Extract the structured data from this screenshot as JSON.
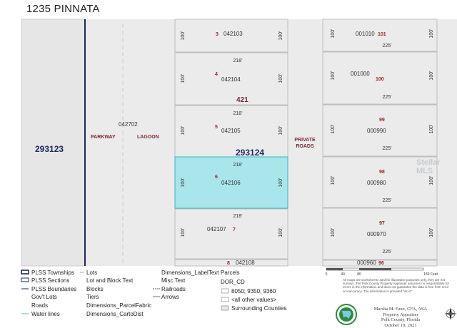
{
  "header": {
    "title": "1235 PINNATA"
  },
  "map": {
    "sections": [
      {
        "label": "293123"
      },
      {
        "label": "293124"
      }
    ],
    "street_labels": {
      "parkway": "PARKWAY",
      "lagoon": "LAGOON",
      "private_roads": "PRIVATE ROADS",
      "parcel_042702": "042702"
    },
    "left_lots": [
      {
        "lot": "3",
        "parcel": "042103",
        "top_dim": "",
        "side_dim": "100'"
      },
      {
        "lot": "4",
        "parcel": "042104",
        "top_dim": "218'",
        "side_dim": "100'"
      },
      {
        "lot": "5",
        "parcel": "042105",
        "top_dim": "218'",
        "side_dim": "100'"
      },
      {
        "lot": "6",
        "parcel": "042106",
        "top_dim": "218'",
        "side_dim": "100'",
        "highlighted": true
      },
      {
        "lot": "7",
        "parcel": "042107",
        "top_dim": "218'",
        "side_dim": "100'"
      },
      {
        "lot": "8",
        "parcel": "042108",
        "top_dim": "",
        "side_dim": ""
      }
    ],
    "block_label": "421",
    "right_lots": [
      {
        "lot": "101",
        "parcel": "001010",
        "bottom_dim": "225'",
        "side_dim": "100'"
      },
      {
        "lot": "100",
        "parcel": "001000",
        "bottom_dim": "225'",
        "side_dim": "100'"
      },
      {
        "lot": "99",
        "parcel": "000990",
        "bottom_dim": "225'",
        "side_dim": "100'"
      },
      {
        "lot": "98",
        "parcel": "000980",
        "bottom_dim": "225'",
        "side_dim": "100'"
      },
      {
        "lot": "97",
        "parcel": "000970",
        "bottom_dim": "225'",
        "side_dim": "100'"
      },
      {
        "lot": "96",
        "parcel": "000960",
        "bottom_dim": "",
        "side_dim": ""
      }
    ],
    "colors": {
      "background": "#ebebeb",
      "highlight": "#a8e6ec",
      "highlight_border": "#34b5c2",
      "township_line": "#1c2a5e",
      "lot_number": "#a1232b",
      "section_label": "#1c2a5e"
    },
    "watermark": "Stellar MLS"
  },
  "legend": {
    "col1": [
      "PLSS Townships",
      "PLSS Sections",
      "PLSS Boundaries",
      "Gov't Lots",
      "Roads",
      "Water lines"
    ],
    "col2": [
      "Lots",
      "Lot and Block Text",
      "Blocks",
      "Tiers",
      "Dimensions_ParcelFabric",
      "Dimensions_CartoDist"
    ],
    "col3": [
      "Dimensions_LabelText",
      "Misc Text",
      "Railroads",
      "Arrows"
    ],
    "parcels_title": "Parcels",
    "dor_title": "DOR_CD",
    "dor_items": [
      "8050; 9350; 9360",
      "<all other values>",
      "Surrounding Counties"
    ]
  },
  "scale": {
    "ticks": [
      "0",
      "40",
      "80",
      "160 Feet"
    ]
  },
  "disclaimer": "All maps are worksheets used for illustrative purposes only, they are not surveys. The Polk County Property Appraiser assumes no responsibility for errors in the information and does not guarantee the data is free from error or inaccuracy. The information is provided \"as is\".",
  "credit": {
    "line1": "Marsha M. Faux, CFA, ASA",
    "line2": "Property Appraiser",
    "line3": "Polk County, Florida",
    "line4": "October 18, 2021"
  },
  "compass": {
    "n": "N",
    "s": "S",
    "e": "E",
    "w": "W"
  }
}
